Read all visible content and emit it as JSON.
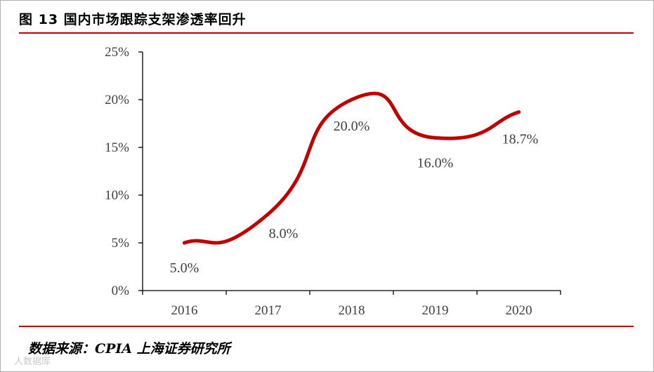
{
  "header": {
    "title": "图 13 国内市场跟踪支架渗透率回升"
  },
  "footer": {
    "source": "数据来源：CPIA 上海证券研究所",
    "watermark": "人数据库"
  },
  "colors": {
    "line": "#c00000",
    "rule": "#c00000",
    "axis": "#000000",
    "text": "#404040"
  },
  "chart_data": {
    "type": "line",
    "title": "图 13 国内市场跟踪支架渗透率回升",
    "xlabel": "",
    "ylabel": "",
    "categories": [
      "2016",
      "2017",
      "2018",
      "2019",
      "2020"
    ],
    "series": [
      {
        "name": "国内市场跟踪支架渗透率",
        "values": [
          5.0,
          8.0,
          20.0,
          16.0,
          18.7
        ]
      }
    ],
    "data_labels": [
      "5.0%",
      "8.0%",
      "20.0%",
      "16.0%",
      "18.7%"
    ],
    "ylim": [
      0,
      25
    ],
    "yticks": [
      0,
      5,
      10,
      15,
      20,
      25
    ],
    "ytick_labels": [
      "0%",
      "5%",
      "10%",
      "15%",
      "20%",
      "25%"
    ],
    "smooth": true,
    "grid": false,
    "legend": "none"
  }
}
